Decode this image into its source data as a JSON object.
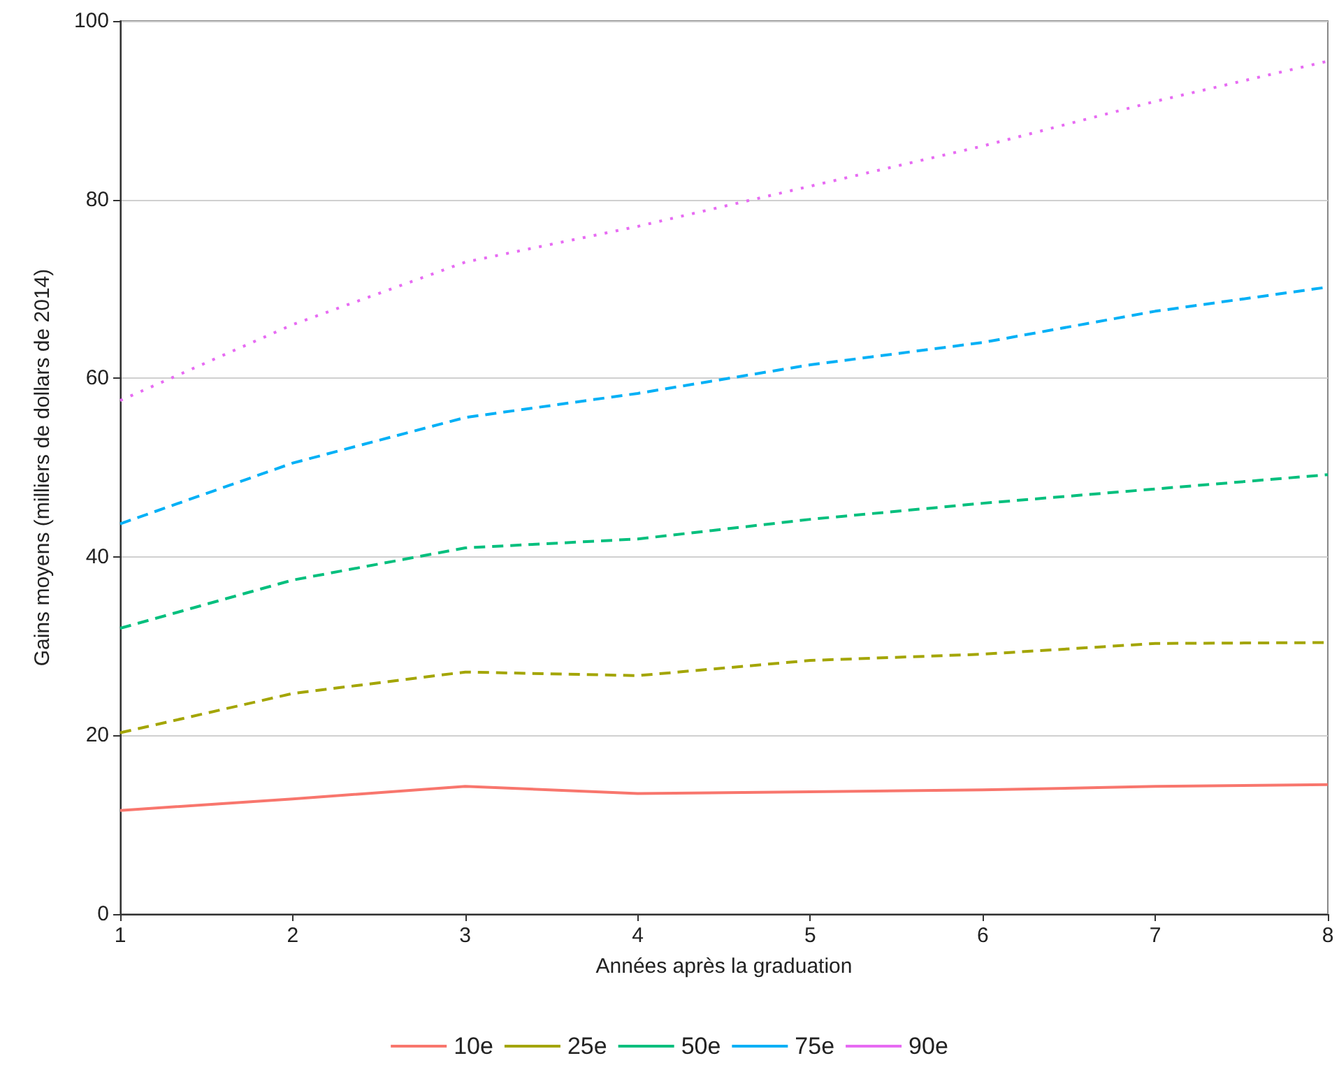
{
  "chart_data": {
    "type": "line",
    "xlabel": "Années après la graduation",
    "ylabel": "Gains moyens (milliers de dollars de 2014)",
    "x": [
      1,
      2,
      3,
      4,
      5,
      6,
      7,
      8
    ],
    "series": [
      {
        "name": "10e",
        "color": "#f8766d",
        "line_style": "solid",
        "values": [
          11.6,
          12.9,
          14.3,
          13.5,
          13.7,
          13.9,
          14.3,
          14.5
        ]
      },
      {
        "name": "25e",
        "color": "#a3a500",
        "line_style": "dashed",
        "values": [
          20.3,
          24.7,
          27.1,
          26.7,
          28.4,
          29.1,
          30.3,
          30.4
        ]
      },
      {
        "name": "50e",
        "color": "#00bf7d",
        "line_style": "dashed",
        "values": [
          32,
          37.4,
          41,
          42,
          44.2,
          46,
          47.6,
          49.2
        ]
      },
      {
        "name": "75e",
        "color": "#00b0f6",
        "line_style": "dashed",
        "values": [
          43.7,
          50.5,
          55.6,
          58.3,
          61.5,
          64,
          67.5,
          70.2
        ]
      },
      {
        "name": "90e",
        "color": "#e76bf3",
        "line_style": "dotted",
        "values": [
          57.5,
          66,
          73,
          77,
          81.5,
          86,
          91,
          95.5
        ]
      }
    ],
    "xlim": [
      1,
      8
    ],
    "xticks": [
      1,
      2,
      3,
      4,
      5,
      6,
      7,
      8
    ],
    "ylim": [
      0,
      100
    ],
    "yticks": [
      0,
      20,
      40,
      60,
      80,
      100
    ],
    "grid": "y",
    "legend": "bottom",
    "marker": "none"
  }
}
